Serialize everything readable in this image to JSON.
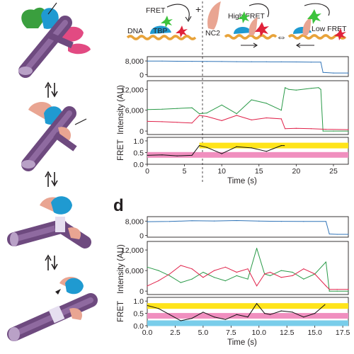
{
  "figure": {
    "panel_label_lower": "d",
    "colors": {
      "donor": "#2a9a48",
      "acceptor": "#e0224a",
      "total": "#2f73b7",
      "fret_trace": "#111111",
      "high_fret_band": "#ffe41a",
      "low_fret_band": "#f08fbf",
      "zero_fret_band": "#79cdea",
      "dna": "#e8a33a",
      "tbp": "#1f9ad1",
      "nc2": "#e9a592",
      "cylinder": "#6e4a7f",
      "green_dye": "#3cc33c",
      "red_dye": "#e0223a"
    },
    "arrows": [
      "↑↓",
      "↑↓",
      "↑↓"
    ]
  },
  "diagram": {
    "dna_label": "DNA",
    "fret_label": "FRET",
    "tbp_label": "TBP",
    "plus": "+",
    "nc2_label": "NC2",
    "high_fret_label": "High FRET",
    "low_fret_label": "Low FRET",
    "equilibrium_symbol": "⇔"
  },
  "chart_data": [
    {
      "id": "c",
      "type": "line",
      "xlabel": "Time (s)",
      "x_ticks": [
        "0",
        "5",
        "10",
        "15",
        "20",
        "25"
      ],
      "xlim": [
        0,
        27
      ],
      "event_marker_time": 7,
      "panels": [
        {
          "name": "total",
          "ylabel": "",
          "ylim": [
            -1000,
            10500
          ],
          "y_ticks": [
            "8,000",
            "0"
          ],
          "series": [
            {
              "color": "#2f73b7",
              "x": [
                0,
                2,
                4,
                6,
                8,
                10,
                12,
                14,
                16,
                18,
                20,
                22,
                23.3,
                23.6,
                25,
                27
              ],
              "y": [
                7900,
                7900,
                7850,
                7800,
                7700,
                7650,
                7600,
                7550,
                7500,
                7450,
                7400,
                7350,
                7300,
                1400,
                1000,
                1000
              ]
            }
          ]
        },
        {
          "name": "intensity",
          "ylabel": "Intensity (AU)",
          "ylim": [
            -1000,
            14500
          ],
          "y_ticks": [
            "12,000",
            "6,000",
            "0"
          ],
          "series": [
            {
              "color": "#2a9a48",
              "x": [
                0,
                2,
                4,
                6,
                7,
                8,
                10,
                12,
                14,
                16,
                18,
                18.5,
                19,
                20,
                22,
                23,
                23.3,
                23.6,
                25,
                27
              ],
              "y": [
                6200,
                6300,
                6500,
                6700,
                5000,
                5200,
                7500,
                5000,
                9000,
                8000,
                6000,
                12500,
                12000,
                11800,
                12300,
                12500,
                12000,
                0,
                0,
                0
              ]
            },
            {
              "color": "#e0224a",
              "x": [
                0,
                2,
                4,
                6,
                7,
                8,
                10,
                12,
                14,
                16,
                18,
                18.5,
                20,
                22,
                24,
                27
              ],
              "y": [
                2800,
                2700,
                2500,
                2300,
                4500,
                4200,
                3000,
                4500,
                3200,
                3800,
                3500,
                700,
                800,
                700,
                500,
                400
              ]
            }
          ]
        },
        {
          "name": "fret",
          "ylabel": "FRET",
          "ylim": [
            0,
            1.15
          ],
          "y_ticks": [
            "1.0",
            "0.5",
            "0.0"
          ],
          "bands": [
            {
              "color": "#ffe41a",
              "y": 0.8,
              "from": 7
            },
            {
              "color": "#f08fbf",
              "y": 0.4,
              "from": 0
            }
          ],
          "series": [
            {
              "color": "#111111",
              "x": [
                0,
                2,
                4,
                6,
                7,
                8,
                10,
                12,
                14,
                16,
                18,
                18.4
              ],
              "y": [
                0.38,
                0.4,
                0.36,
                0.38,
                0.8,
                0.72,
                0.45,
                0.75,
                0.7,
                0.55,
                0.8,
                0.8
              ]
            }
          ]
        }
      ]
    },
    {
      "id": "d",
      "type": "line",
      "xlabel": "Time (s)",
      "x_ticks": [
        "0.0",
        "2.5",
        "5.0",
        "7.5",
        "10.0",
        "12.5",
        "15.0",
        "17.5"
      ],
      "xlim": [
        0,
        18
      ],
      "panels": [
        {
          "name": "total",
          "ylabel": "",
          "ylim": [
            -1000,
            10500
          ],
          "y_ticks": [
            "8,000",
            "0"
          ],
          "series": [
            {
              "color": "#2f73b7",
              "x": [
                0,
                2,
                4,
                6,
                8,
                10,
                12,
                14,
                16,
                16.3,
                17,
                18
              ],
              "y": [
                7700,
                7800,
                8200,
                8100,
                8300,
                8000,
                7900,
                7800,
                7800,
                800,
                600,
                600
              ]
            }
          ]
        },
        {
          "name": "intensity",
          "ylabel": "Intensity (AU)",
          "ylim": [
            -1000,
            14500
          ],
          "y_ticks": [
            "12,000",
            "6,000",
            "0"
          ],
          "series": [
            {
              "color": "#2a9a48",
              "x": [
                0,
                1,
                2,
                3,
                4,
                5,
                6,
                7,
                8,
                9,
                9.8,
                10.5,
                11,
                12,
                13,
                14,
                15,
                16,
                16.3,
                17,
                18
              ],
              "y": [
                7000,
                6000,
                4500,
                2500,
                3500,
                5500,
                4000,
                3000,
                4500,
                3500,
                12500,
                5000,
                4500,
                6000,
                5500,
                3500,
                5000,
                8500,
                0,
                0,
                0
              ]
            },
            {
              "color": "#e0224a",
              "x": [
                0,
                1,
                2,
                3,
                4,
                5,
                6,
                7,
                8,
                9,
                9.8,
                10.5,
                11,
                12,
                13,
                14,
                15,
                16,
                16.3,
                17,
                18
              ],
              "y": [
                1500,
                3000,
                5000,
                7500,
                6500,
                4000,
                6000,
                7000,
                5500,
                6500,
                1500,
                5000,
                5500,
                4000,
                4500,
                6500,
                5000,
                1500,
                500,
                500,
                500
              ]
            }
          ]
        },
        {
          "name": "fret",
          "ylabel": "FRET",
          "ylim": [
            0,
            1.15
          ],
          "y_ticks": [
            "1.0",
            "0.5",
            "0.0"
          ],
          "bands": [
            {
              "color": "#ffe41a",
              "y": 0.8,
              "from": 0
            },
            {
              "color": "#f08fbf",
              "y": 0.4,
              "from": 0
            },
            {
              "color": "#79cdea",
              "y": 0.1,
              "from": 0
            }
          ],
          "series": [
            {
              "color": "#111111",
              "x": [
                0,
                1,
                2,
                3,
                4,
                5,
                6,
                7,
                8,
                9,
                9.8,
                10.5,
                11,
                12,
                13,
                14,
                15,
                15.9
              ],
              "y": [
                0.82,
                0.7,
                0.45,
                0.2,
                0.3,
                0.55,
                0.35,
                0.25,
                0.45,
                0.35,
                0.9,
                0.5,
                0.45,
                0.6,
                0.55,
                0.35,
                0.5,
                0.85
              ]
            }
          ]
        }
      ]
    }
  ]
}
